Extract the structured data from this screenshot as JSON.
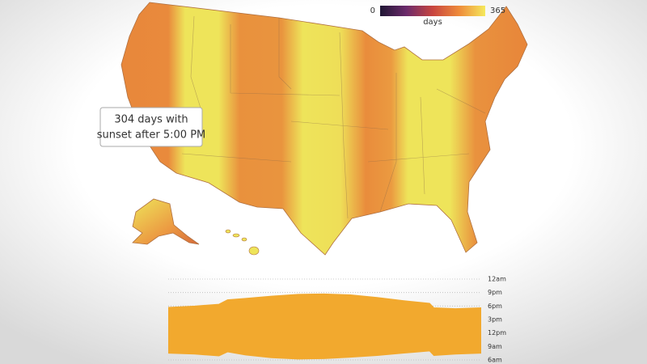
{
  "legend": {
    "min": 0,
    "max": 365,
    "title": "days",
    "colors": [
      "#1f1634",
      "#6b2a6b",
      "#c8453f",
      "#ee8a3a",
      "#f5e95c"
    ]
  },
  "tooltip": {
    "line1": "304 days with",
    "line2": "sunset after 5:00 PM"
  },
  "chart_data": {
    "type": "area",
    "x": [
      1,
      32,
      60,
      70,
      91,
      121,
      152,
      182,
      213,
      244,
      274,
      305,
      310,
      335,
      365
    ],
    "xlim": [
      1,
      365
    ],
    "series": [
      {
        "color": "#f2a92e",
        "values": [
          17.7,
          18.0,
          18.4,
          19.4,
          19.7,
          20.2,
          20.6,
          20.7,
          20.5,
          19.9,
          19.2,
          18.6,
          17.6,
          17.4,
          17.6
        ]
      },
      {
        "color": "#f2a92e",
        "values": [
          7.5,
          7.3,
          6.9,
          7.8,
          7.1,
          6.5,
          6.2,
          6.3,
          6.6,
          7.0,
          7.5,
          8.0,
          7.0,
          7.3,
          7.5
        ]
      }
    ],
    "ylim": [
      6,
      24
    ],
    "yticks": [
      {
        "value": 24,
        "label": "12am"
      },
      {
        "value": 21,
        "label": "9pm"
      },
      {
        "value": 18,
        "label": "6pm"
      },
      {
        "value": 15,
        "label": "3pm"
      },
      {
        "value": 12,
        "label": "12pm"
      },
      {
        "value": 9,
        "label": "9am"
      },
      {
        "value": 6,
        "label": "6am"
      }
    ],
    "grid": true
  }
}
